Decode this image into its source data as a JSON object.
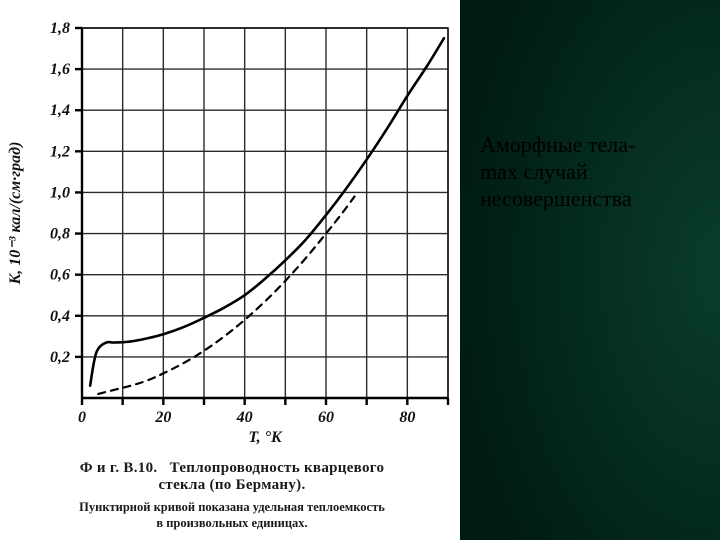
{
  "background": {
    "right_gradient_from": "#001a12",
    "right_gradient_to": "#0a3d2c",
    "left_bg": "#ffffff"
  },
  "side_text": "Аморфные тела-\nmax случай\nнесовершенства",
  "caption_main_prefix": "Ф и г.   В.10.",
  "caption_main_rest_line1": "Теплопроводность   кварцевого",
  "caption_main_line2": "стекла (по Берману).",
  "caption_sub_line1": "Пунктирной  кривой  показана  удельная  теплоемкость",
  "caption_sub_line2": "в произвольных единицах.",
  "chart": {
    "type": "line",
    "background_color": "#ffffff",
    "grid_color": "#2a2a2a",
    "axis_color": "#000000",
    "line_width_axis": 2.4,
    "line_width_grid": 1.4,
    "tick_len": 7,
    "x": {
      "min": 0,
      "max": 90,
      "ticks_labeled": [
        0,
        20,
        40,
        60,
        80
      ],
      "grid": [
        10,
        20,
        30,
        40,
        50,
        60,
        70,
        80,
        90
      ]
    },
    "y": {
      "min": 0,
      "max": 1.8,
      "ticks_labeled": [
        0,
        0.2,
        0.4,
        0.6,
        0.8,
        1.0,
        1.2,
        1.4,
        1.6,
        1.8
      ],
      "grid": [
        0.2,
        0.4,
        0.6,
        0.8,
        1.0,
        1.2,
        1.4,
        1.6,
        1.8
      ]
    },
    "ytick_labels": [
      "0",
      "0,2",
      "0,4",
      "0,6",
      "0,8",
      "1,0",
      "1,2",
      "1,4",
      "1,6",
      "1,8"
    ],
    "x_label": "T, °K",
    "y_label": "K, 10⁻³ кал/(см·град)",
    "label_fontsize": 16,
    "tick_fontsize": 16,
    "tick_font_style": "italic",
    "series": [
      {
        "name": "solid",
        "stroke": "#000000",
        "stroke_width": 2.6,
        "dash": null,
        "points": [
          [
            2,
            0.06
          ],
          [
            3,
            0.18
          ],
          [
            4,
            0.24
          ],
          [
            6,
            0.27
          ],
          [
            8,
            0.27
          ],
          [
            12,
            0.275
          ],
          [
            16,
            0.29
          ],
          [
            20,
            0.31
          ],
          [
            25,
            0.345
          ],
          [
            30,
            0.39
          ],
          [
            35,
            0.44
          ],
          [
            40,
            0.5
          ],
          [
            45,
            0.58
          ],
          [
            50,
            0.67
          ],
          [
            55,
            0.77
          ],
          [
            60,
            0.89
          ],
          [
            65,
            1.02
          ],
          [
            70,
            1.16
          ],
          [
            75,
            1.31
          ],
          [
            80,
            1.47
          ],
          [
            85,
            1.62
          ],
          [
            89,
            1.75
          ]
        ]
      },
      {
        "name": "dashed",
        "stroke": "#000000",
        "stroke_width": 2.2,
        "dash": "7 6",
        "points": [
          [
            4,
            0.02
          ],
          [
            8,
            0.04
          ],
          [
            12,
            0.06
          ],
          [
            16,
            0.085
          ],
          [
            20,
            0.12
          ],
          [
            25,
            0.17
          ],
          [
            30,
            0.23
          ],
          [
            35,
            0.3
          ],
          [
            40,
            0.38
          ],
          [
            45,
            0.47
          ],
          [
            50,
            0.57
          ],
          [
            55,
            0.68
          ],
          [
            60,
            0.8
          ],
          [
            64,
            0.9
          ],
          [
            67,
            0.98
          ]
        ]
      }
    ]
  }
}
